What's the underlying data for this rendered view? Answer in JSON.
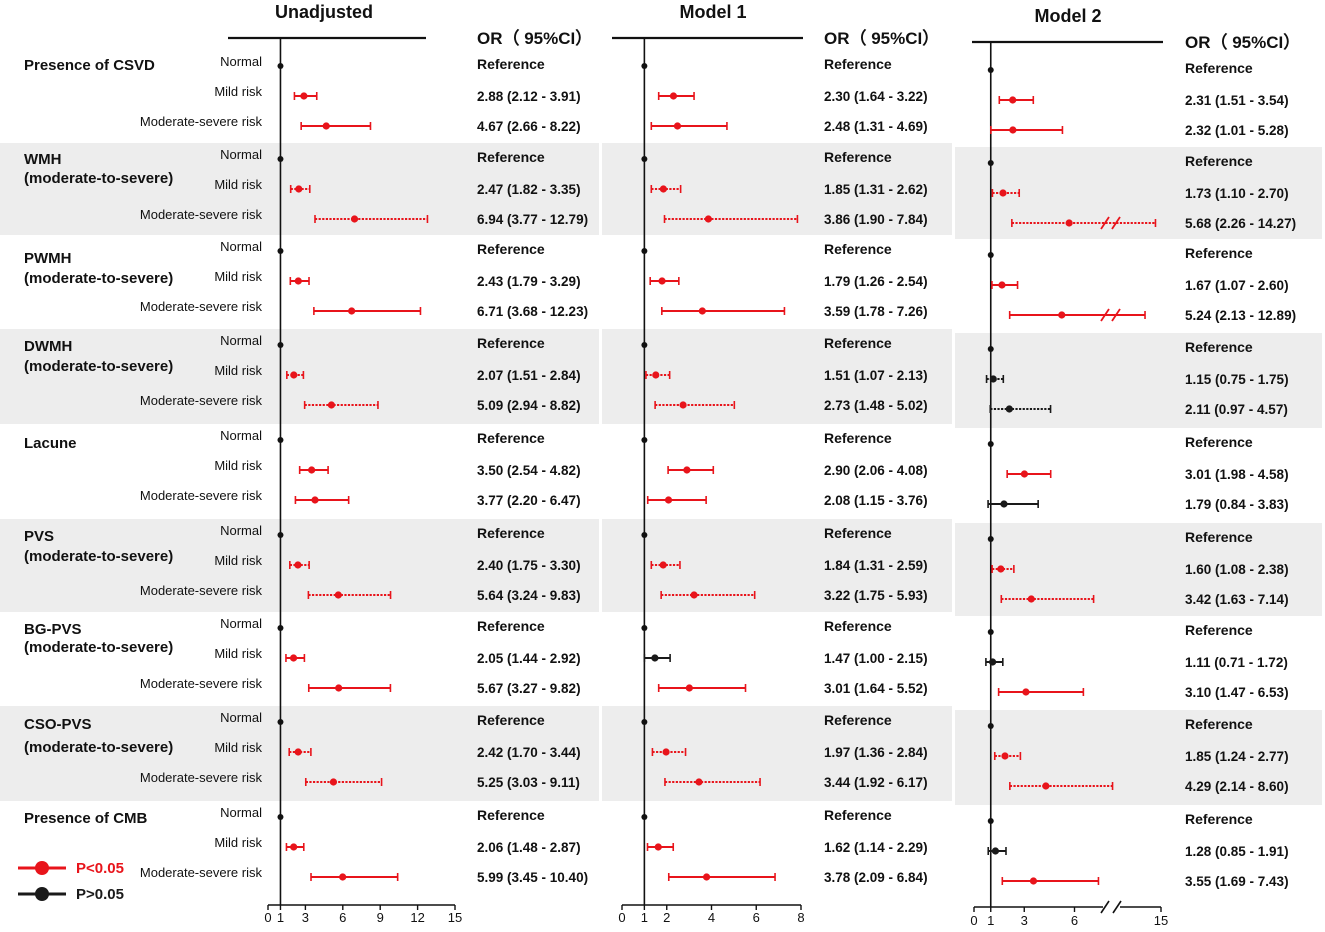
{
  "chart_data": {
    "type": "forest",
    "significant_color": "#e8141b",
    "nonsignificant_color": "#1a1a1a",
    "shade_color": "#ededed",
    "legend": [
      {
        "label": "P<0.05",
        "color": "#e8141b"
      },
      {
        "label": "P>0.05",
        "color": "#1a1a1a"
      }
    ],
    "groups": [
      {
        "label": "Presence of CSVD",
        "shaded": false,
        "dashed": false
      },
      {
        "label": "WMH (moderate-to-severe)",
        "shaded": true,
        "dashed": true
      },
      {
        "label": "PWMH (moderate-to-severe)",
        "shaded": false,
        "dashed": false
      },
      {
        "label": "DWMH (moderate-to-severe)",
        "shaded": true,
        "dashed": true
      },
      {
        "label": "Lacune",
        "shaded": false,
        "dashed": false
      },
      {
        "label": "PVS (moderate-to-severe)",
        "shaded": true,
        "dashed": true
      },
      {
        "label": "BG-PVS (moderate-to-severe)",
        "shaded": false,
        "dashed": false
      },
      {
        "label": "CSO-PVS (moderate-to-severe)",
        "shaded": true,
        "dashed": true
      },
      {
        "label": "Presence of CMB",
        "shaded": false,
        "dashed": false
      }
    ],
    "levels": [
      "Normal",
      "Mild risk",
      "Moderate-severe risk"
    ],
    "reference_label": "Reference",
    "or_header": "OR（ 95%CI）",
    "models": [
      {
        "title": "Unadjusted",
        "xticks": [
          0,
          1,
          3,
          6,
          9,
          12,
          15
        ],
        "xlim": [
          0,
          15
        ],
        "axis_break": false,
        "rows": [
          [
            {
              "or": 2.88,
              "lo": 2.12,
              "hi": 3.91,
              "sig": true,
              "text": "2.88 (2.12 - 3.91)"
            },
            {
              "or": 4.67,
              "lo": 2.66,
              "hi": 8.22,
              "sig": true,
              "text": "4.67 (2.66 - 8.22)"
            }
          ],
          [
            {
              "or": 2.47,
              "lo": 1.82,
              "hi": 3.35,
              "sig": true,
              "text": "2.47 (1.82 - 3.35)"
            },
            {
              "or": 6.94,
              "lo": 3.77,
              "hi": 12.79,
              "sig": true,
              "text": "6.94 (3.77 - 12.79)"
            }
          ],
          [
            {
              "or": 2.43,
              "lo": 1.79,
              "hi": 3.29,
              "sig": true,
              "text": "2.43 (1.79 - 3.29)"
            },
            {
              "or": 6.71,
              "lo": 3.68,
              "hi": 12.23,
              "sig": true,
              "text": "6.71 (3.68 - 12.23)"
            }
          ],
          [
            {
              "or": 2.07,
              "lo": 1.51,
              "hi": 2.84,
              "sig": true,
              "text": "2.07 (1.51 - 2.84)"
            },
            {
              "or": 5.09,
              "lo": 2.94,
              "hi": 8.82,
              "sig": true,
              "text": "5.09 (2.94 - 8.82)"
            }
          ],
          [
            {
              "or": 3.5,
              "lo": 2.54,
              "hi": 4.82,
              "sig": true,
              "text": "3.50 (2.54 - 4.82)"
            },
            {
              "or": 3.77,
              "lo": 2.2,
              "hi": 6.47,
              "sig": true,
              "text": "3.77 (2.20 - 6.47)"
            }
          ],
          [
            {
              "or": 2.4,
              "lo": 1.75,
              "hi": 3.3,
              "sig": true,
              "text": "2.40 (1.75 - 3.30)"
            },
            {
              "or": 5.64,
              "lo": 3.24,
              "hi": 9.83,
              "sig": true,
              "text": "5.64 (3.24 - 9.83)"
            }
          ],
          [
            {
              "or": 2.05,
              "lo": 1.44,
              "hi": 2.92,
              "sig": true,
              "text": "2.05 (1.44 - 2.92)"
            },
            {
              "or": 5.67,
              "lo": 3.27,
              "hi": 9.82,
              "sig": true,
              "text": "5.67 (3.27 - 9.82)"
            }
          ],
          [
            {
              "or": 2.42,
              "lo": 1.7,
              "hi": 3.44,
              "sig": true,
              "text": "2.42 (1.70 - 3.44)"
            },
            {
              "or": 5.25,
              "lo": 3.03,
              "hi": 9.11,
              "sig": true,
              "text": "5.25 (3.03 - 9.11)"
            }
          ],
          [
            {
              "or": 2.06,
              "lo": 1.48,
              "hi": 2.87,
              "sig": true,
              "text": "2.06 (1.48 - 2.87)"
            },
            {
              "or": 5.99,
              "lo": 3.45,
              "hi": 10.4,
              "sig": true,
              "text": "5.99 (3.45 - 10.40)"
            }
          ]
        ]
      },
      {
        "title": "Model 1",
        "xticks": [
          0,
          1,
          2,
          4,
          6,
          8
        ],
        "xlim": [
          0,
          8
        ],
        "axis_break": false,
        "rows": [
          [
            {
              "or": 2.3,
              "lo": 1.64,
              "hi": 3.22,
              "sig": true,
              "text": "2.30 (1.64 - 3.22)"
            },
            {
              "or": 2.48,
              "lo": 1.31,
              "hi": 4.69,
              "sig": true,
              "text": "2.48 (1.31 - 4.69)"
            }
          ],
          [
            {
              "or": 1.85,
              "lo": 1.31,
              "hi": 2.62,
              "sig": true,
              "text": "1.85 (1.31 - 2.62)"
            },
            {
              "or": 3.86,
              "lo": 1.9,
              "hi": 7.84,
              "sig": true,
              "text": "3.86 (1.90 - 7.84)"
            }
          ],
          [
            {
              "or": 1.79,
              "lo": 1.26,
              "hi": 2.54,
              "sig": true,
              "text": "1.79 (1.26 - 2.54)"
            },
            {
              "or": 3.59,
              "lo": 1.78,
              "hi": 7.26,
              "sig": true,
              "text": "3.59 (1.78 - 7.26)"
            }
          ],
          [
            {
              "or": 1.51,
              "lo": 1.07,
              "hi": 2.13,
              "sig": true,
              "text": "1.51 (1.07 - 2.13)"
            },
            {
              "or": 2.73,
              "lo": 1.48,
              "hi": 5.02,
              "sig": true,
              "text": "2.73 (1.48 - 5.02)"
            }
          ],
          [
            {
              "or": 2.9,
              "lo": 2.06,
              "hi": 4.08,
              "sig": true,
              "text": "2.90 (2.06 - 4.08)"
            },
            {
              "or": 2.08,
              "lo": 1.15,
              "hi": 3.76,
              "sig": true,
              "text": "2.08 (1.15 - 3.76)"
            }
          ],
          [
            {
              "or": 1.84,
              "lo": 1.31,
              "hi": 2.59,
              "sig": true,
              "text": "1.84 (1.31 - 2.59)"
            },
            {
              "or": 3.22,
              "lo": 1.75,
              "hi": 5.93,
              "sig": true,
              "text": "3.22 (1.75 - 5.93)"
            }
          ],
          [
            {
              "or": 1.47,
              "lo": 1.0,
              "hi": 2.15,
              "sig": false,
              "text": "1.47 (1.00 - 2.15)"
            },
            {
              "or": 3.01,
              "lo": 1.64,
              "hi": 5.52,
              "sig": true,
              "text": "3.01 (1.64 - 5.52)"
            }
          ],
          [
            {
              "or": 1.97,
              "lo": 1.36,
              "hi": 2.84,
              "sig": true,
              "text": "1.97 (1.36 - 2.84)"
            },
            {
              "or": 3.44,
              "lo": 1.92,
              "hi": 6.17,
              "sig": true,
              "text": "3.44 (1.92 - 6.17)"
            }
          ],
          [
            {
              "or": 1.62,
              "lo": 1.14,
              "hi": 2.29,
              "sig": true,
              "text": "1.62 (1.14 - 2.29)"
            },
            {
              "or": 3.78,
              "lo": 2.09,
              "hi": 6.84,
              "sig": true,
              "text": "3.78 (2.09 - 6.84)"
            }
          ]
        ]
      },
      {
        "title": "Model 2",
        "xticks": [
          0,
          1,
          3,
          6,
          15
        ],
        "xlim": [
          0,
          15
        ],
        "axis_break": true,
        "break_at": 8,
        "rows": [
          [
            {
              "or": 2.31,
              "lo": 1.51,
              "hi": 3.54,
              "sig": true,
              "text": "2.31 (1.51 - 3.54)"
            },
            {
              "or": 2.32,
              "lo": 1.01,
              "hi": 5.28,
              "sig": true,
              "text": "2.32 (1.01 - 5.28)"
            }
          ],
          [
            {
              "or": 1.73,
              "lo": 1.1,
              "hi": 2.7,
              "sig": true,
              "text": "1.73 (1.10 - 2.70)"
            },
            {
              "or": 5.68,
              "lo": 2.26,
              "hi": 14.27,
              "sig": true,
              "text": "5.68 (2.26 - 14.27)"
            }
          ],
          [
            {
              "or": 1.67,
              "lo": 1.07,
              "hi": 2.6,
              "sig": true,
              "text": "1.67 (1.07 - 2.60)"
            },
            {
              "or": 5.24,
              "lo": 2.13,
              "hi": 12.89,
              "sig": true,
              "text": "5.24 (2.13 - 12.89)"
            }
          ],
          [
            {
              "or": 1.15,
              "lo": 0.75,
              "hi": 1.75,
              "sig": false,
              "text": "1.15 (0.75 - 1.75)"
            },
            {
              "or": 2.11,
              "lo": 0.97,
              "hi": 4.57,
              "sig": false,
              "text": "2.11 (0.97 - 4.57)"
            }
          ],
          [
            {
              "or": 3.01,
              "lo": 1.98,
              "hi": 4.58,
              "sig": true,
              "text": "3.01 (1.98 - 4.58)"
            },
            {
              "or": 1.79,
              "lo": 0.84,
              "hi": 3.83,
              "sig": false,
              "text": "1.79 (0.84 - 3.83)"
            }
          ],
          [
            {
              "or": 1.6,
              "lo": 1.08,
              "hi": 2.38,
              "sig": true,
              "text": "1.60 (1.08 - 2.38)"
            },
            {
              "or": 3.42,
              "lo": 1.63,
              "hi": 7.14,
              "sig": true,
              "text": "3.42 (1.63 - 7.14)"
            }
          ],
          [
            {
              "or": 1.11,
              "lo": 0.71,
              "hi": 1.72,
              "sig": false,
              "text": "1.11 (0.71 - 1.72)"
            },
            {
              "or": 3.1,
              "lo": 1.47,
              "hi": 6.53,
              "sig": true,
              "text": "3.10 (1.47 - 6.53)"
            }
          ],
          [
            {
              "or": 1.85,
              "lo": 1.24,
              "hi": 2.77,
              "sig": true,
              "text": "1.85 (1.24 - 2.77)"
            },
            {
              "or": 4.29,
              "lo": 2.14,
              "hi": 8.6,
              "sig": true,
              "text": "4.29 (2.14 - 8.60)"
            }
          ],
          [
            {
              "or": 1.28,
              "lo": 0.85,
              "hi": 1.91,
              "sig": false,
              "text": "1.28 (0.85 - 1.91)"
            },
            {
              "or": 3.55,
              "lo": 1.69,
              "hi": 7.43,
              "sig": true,
              "text": "3.55 (1.69 - 7.43)"
            }
          ]
        ]
      }
    ]
  }
}
